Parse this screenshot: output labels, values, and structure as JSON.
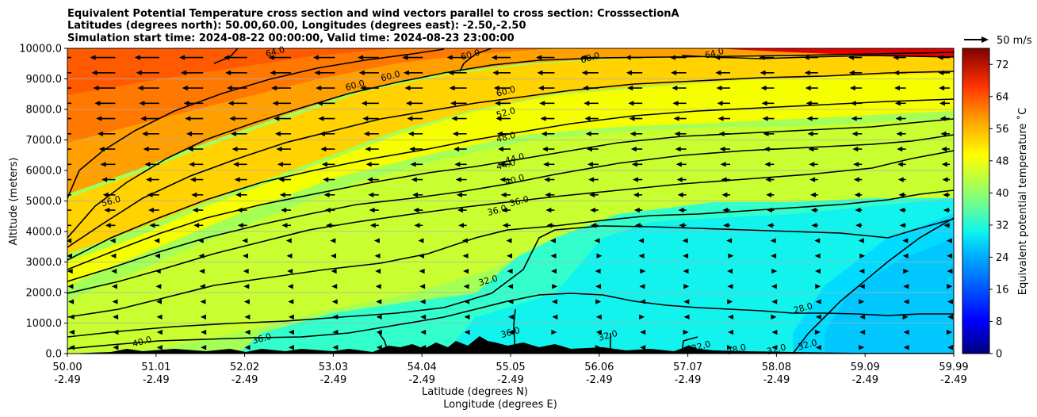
{
  "chart_data": {
    "type": "contour-cross-section",
    "title_lines": [
      "Equivalent Potential Temperature cross section and wind vectors parallel to cross section: CrosssectionA",
      "Latitudes (degrees north): 50.00,60.00, Longitudes (degrees east): -2.50,-2.50",
      "Simulation start time: 2024-08-22 00:00:00, Valid time: 2024-08-23 23:00:00"
    ],
    "ylabel": "Altitude (meters)",
    "xlabel": "Latitude (degrees N)",
    "xlabel2": "Longitude (degrees E)",
    "xlim": [
      50.0,
      59.99
    ],
    "ylim": [
      0,
      10000
    ],
    "x_ticks": [
      {
        "lat": "50.00",
        "lon": "-2.49"
      },
      {
        "lat": "51.01",
        "lon": "-2.49"
      },
      {
        "lat": "52.02",
        "lon": "-2.49"
      },
      {
        "lat": "53.03",
        "lon": "-2.49"
      },
      {
        "lat": "54.04",
        "lon": "-2.49"
      },
      {
        "lat": "55.05",
        "lon": "-2.49"
      },
      {
        "lat": "56.06",
        "lon": "-2.49"
      },
      {
        "lat": "57.07",
        "lon": "-2.49"
      },
      {
        "lat": "58.08",
        "lon": "-2.49"
      },
      {
        "lat": "59.09",
        "lon": "-2.49"
      },
      {
        "lat": "59.99",
        "lon": "-2.49"
      }
    ],
    "y_ticks": [
      "0.0",
      "1000.0",
      "2000.0",
      "3000.0",
      "4000.0",
      "5000.0",
      "6000.0",
      "7000.0",
      "8000.0",
      "9000.0",
      "10000.0"
    ],
    "colorbar": {
      "label": "Equivalent potential temperature $^\\circ$C",
      "label_display": "Equivalent potential temperature ˚C",
      "ticks": [
        "0",
        "8",
        "16",
        "24",
        "32",
        "40",
        "48",
        "56",
        "64",
        "72"
      ],
      "range": [
        0,
        76
      ]
    },
    "quiver_key": "50 m/s",
    "contour_labels": [
      {
        "text": "64.0",
        "lat": 52.35,
        "alt": 9800
      },
      {
        "text": "60.0",
        "lat": 53.25,
        "alt": 8700
      },
      {
        "text": "60.0",
        "lat": 53.65,
        "alt": 9000
      },
      {
        "text": "60.0",
        "lat": 54.55,
        "alt": 9700
      },
      {
        "text": "60.0",
        "lat": 55.9,
        "alt": 9600
      },
      {
        "text": "64.0",
        "lat": 57.3,
        "alt": 9750
      },
      {
        "text": "60.0",
        "lat": 54.95,
        "alt": 8500
      },
      {
        "text": "52.0",
        "lat": 54.95,
        "alt": 7800
      },
      {
        "text": "48.0",
        "lat": 54.95,
        "alt": 7000
      },
      {
        "text": "44.0",
        "lat": 54.95,
        "alt": 6100
      },
      {
        "text": "44.0",
        "lat": 55.05,
        "alt": 6300
      },
      {
        "text": "40.0",
        "lat": 55.05,
        "alt": 5600
      },
      {
        "text": "36.0",
        "lat": 55.1,
        "alt": 4900
      },
      {
        "text": "36.0",
        "lat": 54.85,
        "alt": 4600
      },
      {
        "text": "56.0",
        "lat": 50.5,
        "alt": 4900
      },
      {
        "text": "32.0",
        "lat": 54.75,
        "alt": 2300
      },
      {
        "text": "36.0",
        "lat": 55.0,
        "alt": 600
      },
      {
        "text": "32.0",
        "lat": 56.1,
        "alt": 500
      },
      {
        "text": "32.0",
        "lat": 57.15,
        "alt": 150
      },
      {
        "text": "28.0",
        "lat": 57.55,
        "alt": 50
      },
      {
        "text": "32.0",
        "lat": 58.0,
        "alt": 50
      },
      {
        "text": "32.0",
        "lat": 58.35,
        "alt": 200
      },
      {
        "text": "28.0",
        "lat": 58.3,
        "alt": 1400
      },
      {
        "text": "40.0",
        "lat": 50.85,
        "alt": 300
      },
      {
        "text": "36.0",
        "lat": 52.2,
        "alt": 400
      }
    ],
    "contour_levels": [
      28,
      32,
      36,
      40,
      44,
      48,
      52,
      56,
      60,
      64
    ],
    "wind_direction": "southward aloft (north-to-south), weak near surface"
  }
}
